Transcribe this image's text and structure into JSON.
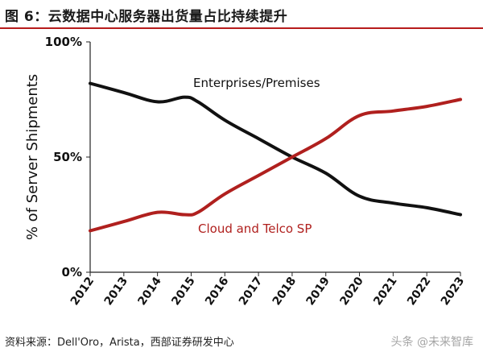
{
  "title": "图 6：云数据中心服务器出货量占比持续提升",
  "source": "资料来源：Dell'Oro，Arista，西部证券研发中心",
  "watermark": "头条 @未来智库",
  "colors": {
    "enterprise": "#111111",
    "cloud": "#b0201e",
    "cloud_label": "#b0201e",
    "rule": "#b71c1c"
  },
  "chart_data": {
    "type": "line",
    "ylabel": "% of Server Shipments",
    "xlabel": "",
    "x": [
      2012,
      2013,
      2014,
      2015,
      2016,
      2017,
      2018,
      2019,
      2020,
      2021,
      2022,
      2023
    ],
    "x_tick_labels": [
      "2012",
      "2013",
      "2014",
      "2015",
      "2016",
      "2017",
      "2018",
      "2019",
      "2020",
      "2021",
      "2022",
      "2023"
    ],
    "y_tick_labels": [
      "100%",
      "50%",
      "0%"
    ],
    "ylim": [
      0,
      100
    ],
    "grid": false,
    "series": [
      {
        "name": "Enterprises/Premises",
        "color": "#111111",
        "points": [
          [
            2012,
            82
          ],
          [
            2013,
            78
          ],
          [
            2014,
            74
          ],
          [
            2014.8,
            76
          ],
          [
            2015.2,
            74
          ],
          [
            2016,
            66
          ],
          [
            2017,
            58
          ],
          [
            2018,
            50
          ],
          [
            2019,
            43
          ],
          [
            2020,
            33
          ],
          [
            2021,
            30
          ],
          [
            2022,
            28
          ],
          [
            2023,
            25
          ]
        ]
      },
      {
        "name": "Cloud and Telco SP",
        "color": "#b0201e",
        "points": [
          [
            2012,
            18
          ],
          [
            2013,
            22
          ],
          [
            2014,
            26
          ],
          [
            2014.8,
            25
          ],
          [
            2015.2,
            26
          ],
          [
            2016,
            34
          ],
          [
            2017,
            42
          ],
          [
            2018,
            50
          ],
          [
            2019,
            58
          ],
          [
            2020,
            68
          ],
          [
            2021,
            70
          ],
          [
            2022,
            72
          ],
          [
            2023,
            75
          ]
        ]
      }
    ]
  }
}
